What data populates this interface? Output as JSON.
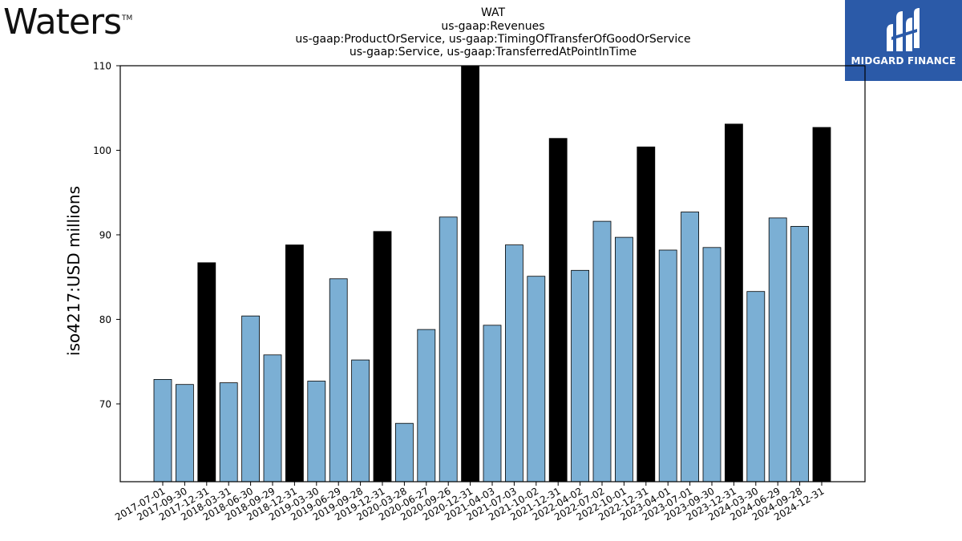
{
  "logos": {
    "left_text": "Waters",
    "left_tm": "TM",
    "right_text": "MIDGARD FINANCE"
  },
  "chart_data": {
    "type": "bar",
    "title_lines": [
      "WAT",
      "us-gaap:Revenues",
      "us-gaap:ProductOrService, us-gaap:TimingOfTransferOfGoodOrService",
      "us-gaap:Service, us-gaap:TransferredAtPointInTime"
    ],
    "ylabel": "iso4217:USD  millions",
    "xlabel": "",
    "ylim": [
      60.8,
      110
    ],
    "yticks": [
      70,
      80,
      90,
      100,
      110
    ],
    "grid": false,
    "colors": {
      "quarter": "#7bafd4",
      "year_end": "#000000",
      "edge": "#000000"
    },
    "categories": [
      "2017-07-01",
      "2017-09-30",
      "2017-12-31",
      "2018-03-31",
      "2018-06-30",
      "2018-09-29",
      "2018-12-31",
      "2019-03-30",
      "2019-06-29",
      "2019-09-28",
      "2019-12-31",
      "2020-03-28",
      "2020-06-27",
      "2020-09-26",
      "2020-12-31",
      "2021-04-03",
      "2021-07-03",
      "2021-10-02",
      "2021-12-31",
      "2022-04-02",
      "2022-07-02",
      "2022-10-01",
      "2022-12-31",
      "2023-04-01",
      "2023-07-01",
      "2023-09-30",
      "2023-12-31",
      "2024-03-30",
      "2024-06-29",
      "2024-09-28",
      "2024-12-31"
    ],
    "values": [
      72.9,
      72.3,
      86.7,
      72.5,
      80.4,
      75.8,
      88.8,
      72.7,
      84.8,
      75.2,
      90.4,
      67.7,
      78.8,
      92.1,
      110.0,
      79.3,
      88.8,
      85.1,
      101.4,
      85.8,
      91.6,
      89.7,
      100.4,
      88.2,
      92.7,
      88.5,
      103.1,
      83.3,
      92.0,
      91.0,
      102.7
    ],
    "year_end": [
      false,
      false,
      true,
      false,
      false,
      false,
      true,
      false,
      false,
      false,
      true,
      false,
      false,
      false,
      true,
      false,
      false,
      false,
      true,
      false,
      false,
      false,
      true,
      false,
      false,
      false,
      true,
      false,
      false,
      false,
      true
    ]
  }
}
